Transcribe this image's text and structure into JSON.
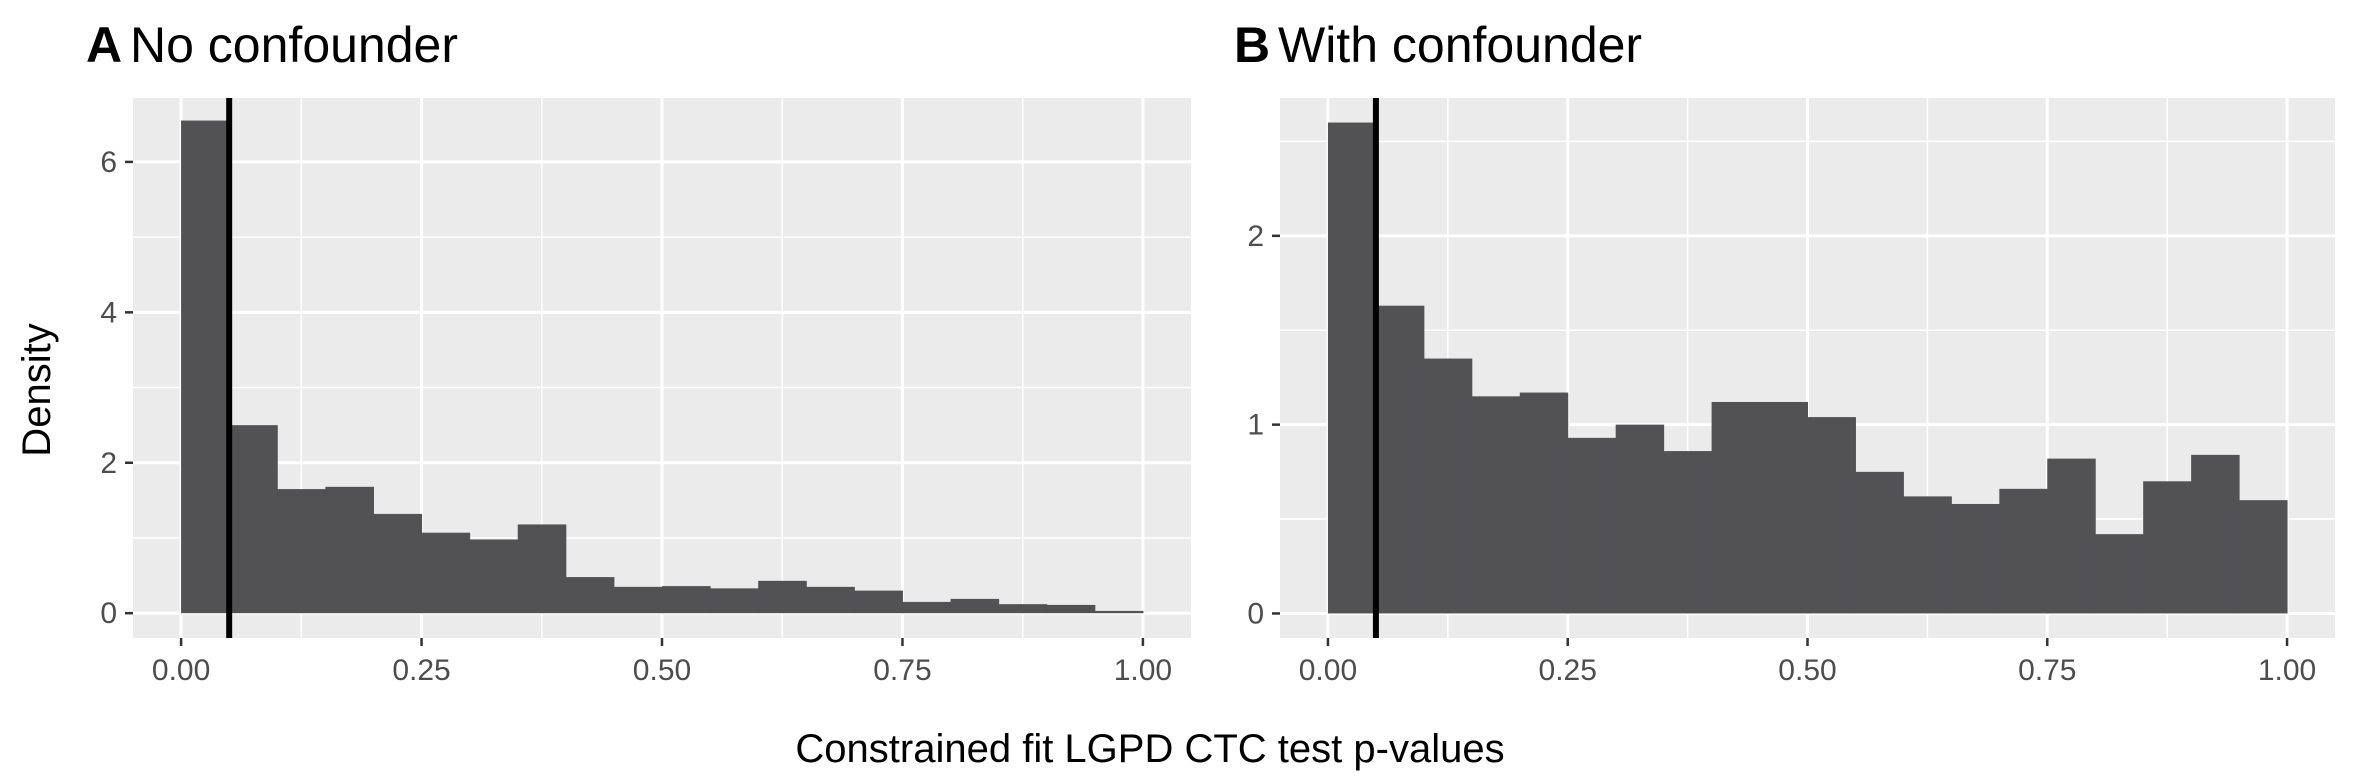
{
  "figure": {
    "xlabel": "Constrained fit LGPD CTC test p-values",
    "ylabel": "Density"
  },
  "colors": {
    "panel_background": "#ebebeb",
    "grid": "#ffffff",
    "bar_fill": "#525154",
    "reference_line": "#000000",
    "tick_text": "#4d4d4d"
  },
  "chart_data": [
    {
      "type": "bar",
      "panel": "A",
      "title": "No confounder",
      "bin_edges": [
        0,
        0.05,
        0.1,
        0.15,
        0.2,
        0.25,
        0.3,
        0.35,
        0.4,
        0.45,
        0.5,
        0.55,
        0.6,
        0.65,
        0.7,
        0.75,
        0.8,
        0.85,
        0.9,
        0.95,
        1.0
      ],
      "values": [
        6.55,
        2.5,
        1.65,
        1.68,
        1.32,
        1.07,
        0.98,
        1.18,
        0.48,
        0.35,
        0.36,
        0.33,
        0.43,
        0.35,
        0.3,
        0.15,
        0.19,
        0.12,
        0.11,
        0.03
      ],
      "vline_x": 0.05,
      "xlim": [
        -0.05,
        1.05
      ],
      "ylim": [
        -0.33,
        6.85
      ],
      "xticks": [
        0,
        0.25,
        0.5,
        0.75,
        1.0
      ],
      "xtick_labels": [
        "0.00",
        "0.25",
        "0.50",
        "0.75",
        "1.00"
      ],
      "yticks": [
        0,
        2,
        4,
        6
      ],
      "ytick_labels": [
        "0",
        "2",
        "4",
        "6"
      ],
      "grid": true
    },
    {
      "type": "bar",
      "panel": "B",
      "title": "With confounder",
      "bin_edges": [
        0,
        0.05,
        0.1,
        0.15,
        0.2,
        0.25,
        0.3,
        0.35,
        0.4,
        0.45,
        0.5,
        0.55,
        0.6,
        0.65,
        0.7,
        0.75,
        0.8,
        0.85,
        0.9,
        0.95,
        1.0
      ],
      "values": [
        2.6,
        1.63,
        1.35,
        1.15,
        1.17,
        0.93,
        1.0,
        0.86,
        1.12,
        1.12,
        1.04,
        0.75,
        0.62,
        0.58,
        0.66,
        0.82,
        0.42,
        0.7,
        0.84,
        0.6
      ],
      "vline_x": 0.05,
      "xlim": [
        -0.05,
        1.05
      ],
      "ylim": [
        -0.13,
        2.73
      ],
      "xticks": [
        0,
        0.25,
        0.5,
        0.75,
        1.0
      ],
      "xtick_labels": [
        "0.00",
        "0.25",
        "0.50",
        "0.75",
        "1.00"
      ],
      "yticks": [
        0,
        1,
        2
      ],
      "ytick_labels": [
        "0",
        "1",
        "2"
      ],
      "grid": true
    }
  ]
}
